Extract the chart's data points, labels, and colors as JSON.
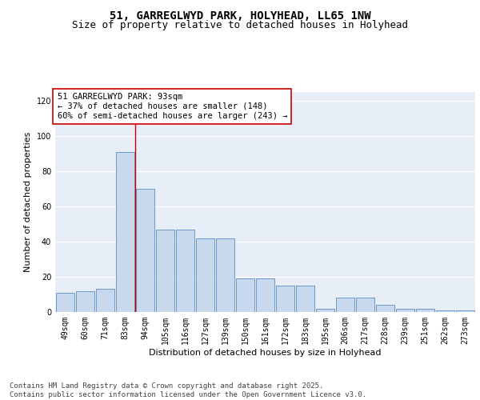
{
  "title": "51, GARREGLWYD PARK, HOLYHEAD, LL65 1NW",
  "subtitle": "Size of property relative to detached houses in Holyhead",
  "xlabel": "Distribution of detached houses by size in Holyhead",
  "ylabel": "Number of detached properties",
  "categories": [
    "49sqm",
    "60sqm",
    "71sqm",
    "83sqm",
    "94sqm",
    "105sqm",
    "116sqm",
    "127sqm",
    "139sqm",
    "150sqm",
    "161sqm",
    "172sqm",
    "183sqm",
    "195sqm",
    "206sqm",
    "217sqm",
    "228sqm",
    "239sqm",
    "251sqm",
    "262sqm",
    "273sqm"
  ],
  "values": [
    11,
    12,
    13,
    91,
    70,
    47,
    47,
    42,
    42,
    19,
    19,
    15,
    15,
    2,
    8,
    8,
    4,
    2,
    2,
    1,
    1
  ],
  "bar_color": "#c9d9ed",
  "bar_edge_color": "#5b8ec4",
  "background_color": "#e8eef8",
  "grid_color": "#ffffff",
  "vline_x": 3.5,
  "vline_color": "#cc0000",
  "annotation_text": "51 GARREGLWYD PARK: 93sqm\n← 37% of detached houses are smaller (148)\n60% of semi-detached houses are larger (243) →",
  "annotation_box_color": "#ffffff",
  "annotation_box_edge_color": "#cc0000",
  "footer_text": "Contains HM Land Registry data © Crown copyright and database right 2025.\nContains public sector information licensed under the Open Government Licence v3.0.",
  "ylim": [
    0,
    125
  ],
  "yticks": [
    0,
    20,
    40,
    60,
    80,
    100,
    120
  ],
  "title_fontsize": 10,
  "subtitle_fontsize": 9,
  "axis_label_fontsize": 8,
  "tick_fontsize": 7,
  "annotation_fontsize": 7.5,
  "footer_fontsize": 6.5
}
